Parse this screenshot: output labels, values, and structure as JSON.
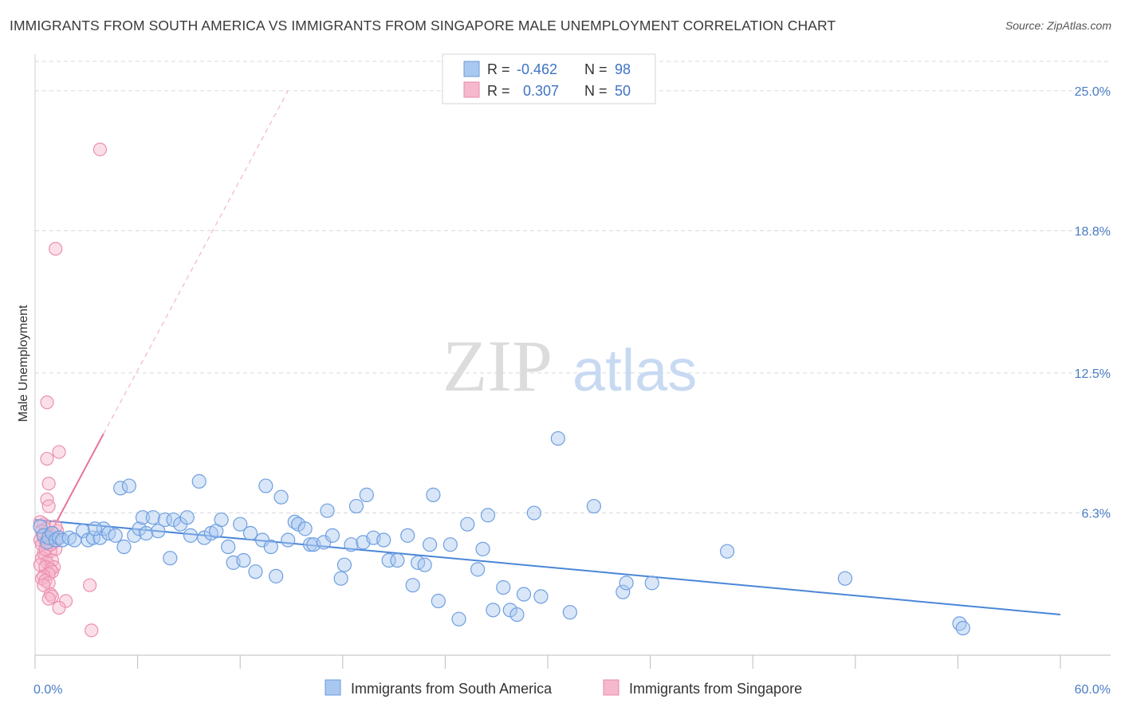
{
  "title": "IMMIGRANTS FROM SOUTH AMERICA VS IMMIGRANTS FROM SINGAPORE MALE UNEMPLOYMENT CORRELATION CHART",
  "source": "Source: ZipAtlas.com",
  "watermark": {
    "part1": "ZIP",
    "part2": "atlas"
  },
  "colors": {
    "blue": "#4a86d8",
    "blue_fill": "#a9c8f0",
    "pink": "#e8729c",
    "pink_fill": "#f6b8cc",
    "axis_label": "#4a7cc4",
    "grid": "#d9d9d9"
  },
  "legend": {
    "rows": [
      {
        "r_label": "R =",
        "r_value": "-0.462",
        "n_label": "N =",
        "n_value": "98",
        "series": "blue"
      },
      {
        "r_label": "R =",
        "r_value": "0.307",
        "n_label": "N =",
        "n_value": "50",
        "series": "pink"
      }
    ]
  },
  "bottom_legend": [
    "Immigrants from South America",
    "Immigrants from Singapore"
  ],
  "chart_data": {
    "type": "scatter",
    "title": "IMMIGRANTS FROM SOUTH AMERICA VS IMMIGRANTS FROM SINGAPORE MALE UNEMPLOYMENT CORRELATION CHART",
    "xlabel": "",
    "ylabel": "Male Unemployment",
    "xlim": [
      0,
      60
    ],
    "ylim": [
      0,
      26.3
    ],
    "y_ticks": [
      6.3,
      12.5,
      18.8,
      25.0
    ],
    "y_tick_labels": [
      "6.3%",
      "12.5%",
      "18.8%",
      "25.0%"
    ],
    "x_tick_labels": [
      "0.0%",
      "60.0%"
    ],
    "grid": true,
    "series": [
      {
        "name": "Immigrants from South America",
        "color": "blue",
        "trend": {
          "x": [
            0,
            60
          ],
          "y": [
            6.0,
            1.8
          ]
        },
        "points": [
          [
            0.3,
            5.7
          ],
          [
            0.5,
            5.3
          ],
          [
            0.7,
            5.0
          ],
          [
            0.8,
            5.2
          ],
          [
            1.0,
            5.4
          ],
          [
            1.2,
            5.1
          ],
          [
            1.4,
            5.2
          ],
          [
            1.6,
            5.1
          ],
          [
            2.0,
            5.2
          ],
          [
            2.3,
            5.1
          ],
          [
            2.8,
            5.5
          ],
          [
            3.1,
            5.1
          ],
          [
            3.4,
            5.2
          ],
          [
            3.8,
            5.2
          ],
          [
            4.0,
            5.6
          ],
          [
            4.3,
            5.4
          ],
          [
            4.7,
            5.3
          ],
          [
            5.0,
            7.4
          ],
          [
            5.2,
            4.8
          ],
          [
            5.5,
            7.5
          ],
          [
            5.8,
            5.3
          ],
          [
            6.1,
            5.6
          ],
          [
            6.3,
            6.1
          ],
          [
            6.5,
            5.4
          ],
          [
            6.9,
            6.1
          ],
          [
            7.2,
            5.5
          ],
          [
            7.6,
            6.0
          ],
          [
            7.9,
            4.3
          ],
          [
            8.1,
            6.0
          ],
          [
            8.5,
            5.8
          ],
          [
            8.9,
            6.1
          ],
          [
            9.1,
            5.3
          ],
          [
            9.6,
            7.7
          ],
          [
            9.9,
            5.2
          ],
          [
            10.3,
            5.4
          ],
          [
            10.6,
            5.5
          ],
          [
            10.9,
            6.0
          ],
          [
            11.3,
            4.8
          ],
          [
            11.6,
            4.1
          ],
          [
            12.0,
            5.8
          ],
          [
            12.2,
            4.2
          ],
          [
            12.6,
            5.4
          ],
          [
            12.9,
            3.7
          ],
          [
            13.3,
            5.1
          ],
          [
            13.5,
            7.5
          ],
          [
            13.8,
            4.8
          ],
          [
            14.1,
            3.5
          ],
          [
            14.4,
            7.0
          ],
          [
            14.8,
            5.1
          ],
          [
            15.2,
            5.9
          ],
          [
            15.4,
            5.8
          ],
          [
            15.8,
            5.6
          ],
          [
            16.1,
            4.9
          ],
          [
            16.3,
            4.9
          ],
          [
            16.9,
            5.0
          ],
          [
            17.1,
            6.4
          ],
          [
            17.4,
            5.3
          ],
          [
            17.9,
            3.4
          ],
          [
            18.1,
            4.0
          ],
          [
            18.5,
            4.9
          ],
          [
            18.8,
            6.6
          ],
          [
            19.2,
            5.0
          ],
          [
            19.4,
            7.1
          ],
          [
            19.8,
            5.2
          ],
          [
            20.4,
            5.1
          ],
          [
            20.7,
            4.2
          ],
          [
            21.2,
            4.2
          ],
          [
            21.8,
            5.3
          ],
          [
            22.1,
            3.1
          ],
          [
            22.4,
            4.1
          ],
          [
            22.8,
            4.0
          ],
          [
            23.1,
            4.9
          ],
          [
            23.3,
            7.1
          ],
          [
            23.6,
            2.4
          ],
          [
            24.3,
            4.9
          ],
          [
            24.8,
            1.6
          ],
          [
            25.3,
            5.8
          ],
          [
            25.9,
            3.8
          ],
          [
            26.2,
            4.7
          ],
          [
            26.5,
            6.2
          ],
          [
            26.8,
            2.0
          ],
          [
            27.4,
            3.0
          ],
          [
            27.8,
            2.0
          ],
          [
            28.2,
            1.8
          ],
          [
            28.6,
            2.7
          ],
          [
            29.2,
            6.3
          ],
          [
            29.6,
            2.6
          ],
          [
            30.6,
            9.6
          ],
          [
            31.3,
            1.9
          ],
          [
            32.7,
            6.6
          ],
          [
            34.4,
            2.8
          ],
          [
            34.6,
            3.2
          ],
          [
            36.1,
            3.2
          ],
          [
            40.5,
            4.6
          ],
          [
            47.4,
            3.4
          ],
          [
            54.1,
            1.4
          ],
          [
            54.3,
            1.2
          ],
          [
            3.5,
            5.6
          ]
        ]
      },
      {
        "name": "Immigrants from Singapore",
        "color": "pink",
        "trend": {
          "x": [
            0.9,
            4.0
          ],
          "y": [
            5.4,
            9.8
          ]
        },
        "trend_dashed": {
          "x": [
            4.0,
            14.8
          ],
          "y": [
            9.8,
            25.0
          ]
        },
        "points": [
          [
            3.8,
            22.4
          ],
          [
            1.2,
            18.0
          ],
          [
            0.7,
            11.2
          ],
          [
            0.7,
            8.7
          ],
          [
            1.4,
            9.0
          ],
          [
            0.8,
            7.6
          ],
          [
            0.7,
            6.9
          ],
          [
            0.8,
            6.6
          ],
          [
            0.5,
            5.8
          ],
          [
            0.6,
            5.6
          ],
          [
            1.3,
            5.5
          ],
          [
            0.9,
            5.3
          ],
          [
            0.5,
            5.2
          ],
          [
            0.7,
            5.1
          ],
          [
            0.8,
            5.0
          ],
          [
            0.6,
            5.0
          ],
          [
            0.3,
            5.1
          ],
          [
            1.1,
            5.0
          ],
          [
            0.4,
            4.9
          ],
          [
            0.7,
            4.8
          ],
          [
            1.2,
            4.7
          ],
          [
            0.9,
            4.6
          ],
          [
            0.5,
            4.5
          ],
          [
            0.6,
            4.4
          ],
          [
            0.4,
            4.3
          ],
          [
            1.0,
            4.2
          ],
          [
            0.7,
            4.1
          ],
          [
            0.3,
            4.0
          ],
          [
            0.6,
            3.9
          ],
          [
            1.1,
            3.9
          ],
          [
            0.9,
            3.8
          ],
          [
            1.0,
            3.7
          ],
          [
            0.8,
            3.6
          ],
          [
            0.5,
            3.5
          ],
          [
            0.4,
            3.4
          ],
          [
            0.6,
            3.3
          ],
          [
            0.8,
            3.2
          ],
          [
            0.5,
            3.1
          ],
          [
            3.2,
            3.1
          ],
          [
            0.9,
            2.7
          ],
          [
            1.0,
            2.6
          ],
          [
            0.8,
            2.5
          ],
          [
            1.8,
            2.4
          ],
          [
            1.4,
            2.1
          ],
          [
            3.3,
            1.1
          ],
          [
            0.3,
            5.9
          ],
          [
            1.2,
            5.7
          ],
          [
            0.6,
            4.7
          ],
          [
            0.9,
            4.9
          ],
          [
            0.4,
            5.5
          ]
        ]
      }
    ]
  }
}
